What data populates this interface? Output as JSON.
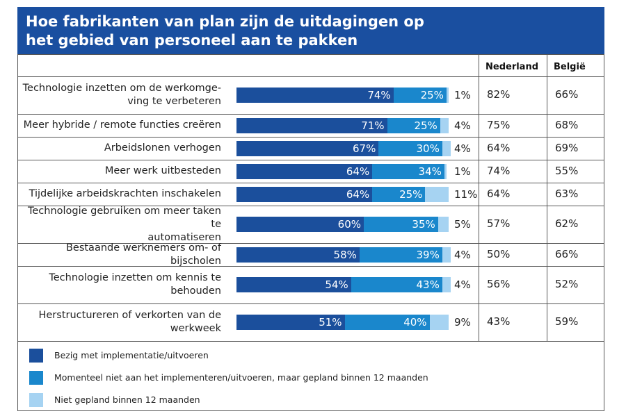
{
  "chart_data": {
    "type": "bar",
    "orientation": "horizontal",
    "stacked": true,
    "title": "Hoe fabrikanten van plan zijn de uitdagingen op\nhet gebied van personeel aan te pakken",
    "categories": [
      "Technologie inzetten om de werkomge-\nving te verbeteren",
      "Meer hybride / remote functies creëren",
      "Arbeidslonen verhogen",
      "Meer werk uitbesteden",
      "Tijdelijke arbeidskrachten inschakelen",
      "Technologie gebruiken om meer taken te\nautomatiseren",
      "Bestaande werknemers om- of bijscholen",
      "Technologie inzetten om kennis te\nbehouden",
      "Herstructureren of verkorten van de\nwerkweek"
    ],
    "xlim": [
      0,
      100
    ],
    "series": [
      {
        "name": "Bezig met implementatie/uitvoeren",
        "color": "#1b4f9c",
        "values": [
          74,
          71,
          67,
          64,
          64,
          60,
          58,
          54,
          51
        ],
        "value_labels": [
          "74%",
          "71%",
          "67%",
          "64%",
          "64%",
          "60%",
          "58%",
          "54%",
          "51%"
        ]
      },
      {
        "name": "Momenteel niet aan het implementeren/uitvoeren, maar gepland binnen 12 maanden",
        "color": "#1a87cc",
        "values": [
          25,
          25,
          30,
          34,
          25,
          35,
          39,
          43,
          40
        ],
        "value_labels": [
          "25%",
          "25%",
          "30%",
          "34%",
          "25%",
          "35%",
          "39%",
          "43%",
          "40%"
        ]
      },
      {
        "name": "Niet gepland binnen 12 maanden",
        "color": "#a6d3f2",
        "values": [
          1,
          4,
          4,
          1,
          11,
          5,
          4,
          4,
          9
        ],
        "value_labels": [
          "1%",
          "4%",
          "4%",
          "1%",
          "11%",
          "5%",
          "4%",
          "4%",
          "9%"
        ]
      }
    ],
    "table_columns": [
      {
        "header": "Nederland",
        "cells": [
          "82%",
          "75%",
          "64%",
          "74%",
          "64%",
          "57%",
          "50%",
          "56%",
          "43%"
        ]
      },
      {
        "header": "België",
        "cells": [
          "66%",
          "68%",
          "69%",
          "55%",
          "63%",
          "62%",
          "66%",
          "52%",
          "59%"
        ]
      }
    ]
  }
}
